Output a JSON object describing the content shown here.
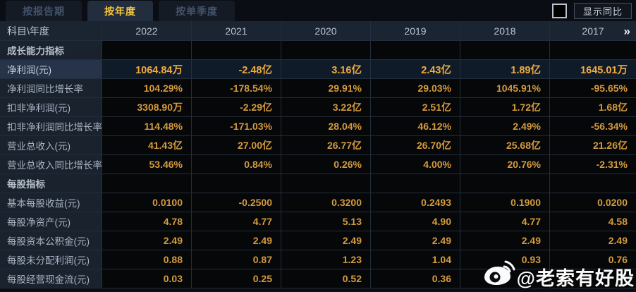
{
  "tabs": [
    {
      "label": "按报告期",
      "active": false
    },
    {
      "label": "按年度",
      "active": true
    },
    {
      "label": "按单季度",
      "active": false
    }
  ],
  "controls": {
    "yoy_checkbox_checked": false,
    "yoy_label": "显示同比"
  },
  "table": {
    "corner_label": "科目\\年度",
    "years": [
      "2022",
      "2021",
      "2020",
      "2019",
      "2018",
      "2017"
    ],
    "more_years_icon": "»",
    "rows": [
      {
        "type": "section",
        "label": "成长能力指标",
        "values": [
          "",
          "",
          "",
          "",
          "",
          ""
        ]
      },
      {
        "type": "data",
        "highlight": true,
        "label": "净利润(元)",
        "values": [
          "1064.84万",
          "-2.48亿",
          "3.16亿",
          "2.43亿",
          "1.89亿",
          "1645.01万"
        ]
      },
      {
        "type": "data",
        "highlight": false,
        "label": "净利润同比增长率",
        "values": [
          "104.29%",
          "-178.54%",
          "29.91%",
          "29.03%",
          "1045.91%",
          "-95.65%"
        ]
      },
      {
        "type": "data",
        "highlight": false,
        "label": "扣非净利润(元)",
        "values": [
          "3308.90万",
          "-2.29亿",
          "3.22亿",
          "2.51亿",
          "1.72亿",
          "1.68亿"
        ]
      },
      {
        "type": "data",
        "highlight": false,
        "label": "扣非净利润同比增长率",
        "values": [
          "114.48%",
          "-171.03%",
          "28.04%",
          "46.12%",
          "2.49%",
          "-56.34%"
        ]
      },
      {
        "type": "data",
        "highlight": false,
        "label": "营业总收入(元)",
        "values": [
          "41.43亿",
          "27.00亿",
          "26.77亿",
          "26.70亿",
          "25.68亿",
          "21.26亿"
        ]
      },
      {
        "type": "data",
        "highlight": false,
        "label": "营业总收入同比增长率",
        "values": [
          "53.46%",
          "0.84%",
          "0.26%",
          "4.00%",
          "20.76%",
          "-2.31%"
        ]
      },
      {
        "type": "section",
        "label": "每股指标",
        "values": [
          "",
          "",
          "",
          "",
          "",
          ""
        ]
      },
      {
        "type": "data",
        "highlight": false,
        "label": "基本每股收益(元)",
        "values": [
          "0.0100",
          "-0.2500",
          "0.3200",
          "0.2493",
          "0.1900",
          "0.0200"
        ]
      },
      {
        "type": "data",
        "highlight": false,
        "label": "每股净资产(元)",
        "values": [
          "4.78",
          "4.77",
          "5.13",
          "4.90",
          "4.77",
          "4.58"
        ]
      },
      {
        "type": "data",
        "highlight": false,
        "label": "每股资本公积金(元)",
        "values": [
          "2.49",
          "2.49",
          "2.49",
          "2.49",
          "2.49",
          "2.49"
        ]
      },
      {
        "type": "data",
        "highlight": false,
        "label": "每股未分配利润(元)",
        "values": [
          "0.88",
          "0.87",
          "1.23",
          "1.04",
          "0.93",
          "0.76"
        ]
      },
      {
        "type": "data",
        "highlight": false,
        "label": "每股经营现金流(元)",
        "values": [
          "0.03",
          "0.25",
          "0.52",
          "0.36",
          "",
          ""
        ]
      }
    ]
  },
  "watermark": {
    "text": "@老索有好股"
  },
  "colors": {
    "background": "#0a0d13",
    "active_tab_text": "#f4c63e",
    "value_gold": "#d59b3e",
    "highlight_gold": "#f1ac40",
    "header_bg": "#1b2531",
    "label_cell_bg": "#1a222e",
    "grid_border": "#232d3b"
  }
}
